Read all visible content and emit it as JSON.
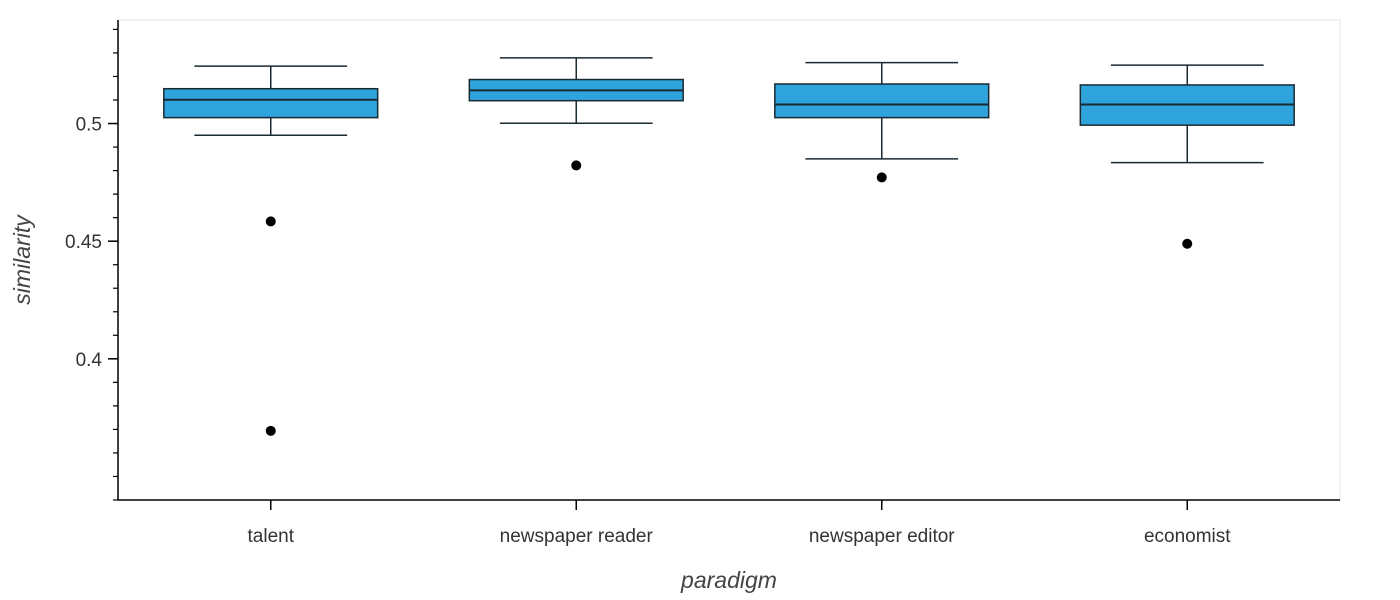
{
  "chart_data": {
    "type": "box",
    "xlabel": "paradigm",
    "ylabel": "similarity",
    "ylim": [
      0.34,
      0.544
    ],
    "yticks": [
      0.4,
      0.45,
      0.5
    ],
    "ytick_labels": [
      "0.4",
      "0.45",
      "0.5"
    ],
    "minor_tick_step": 0.01,
    "grid": false,
    "box_color": "#2ea3dc",
    "outline_color": "#1a2a33",
    "categories": [
      "talent",
      "newspaper reader",
      "newspaper editor",
      "economist"
    ],
    "boxes": [
      {
        "category": "talent",
        "whisker_low": 0.495,
        "q1": 0.5025,
        "median": 0.5101,
        "q3": 0.5148,
        "whisker_high": 0.5244,
        "outliers": [
          0.4584,
          0.3694
        ]
      },
      {
        "category": "newspaper reader",
        "whisker_low": 0.5001,
        "q1": 0.5097,
        "median": 0.5141,
        "q3": 0.5187,
        "whisker_high": 0.5279,
        "outliers": [
          0.4822
        ]
      },
      {
        "category": "newspaper editor",
        "whisker_low": 0.485,
        "q1": 0.5025,
        "median": 0.5081,
        "q3": 0.5168,
        "whisker_high": 0.5259,
        "outliers": [
          0.4771
        ]
      },
      {
        "category": "economist",
        "whisker_low": 0.4834,
        "q1": 0.4993,
        "median": 0.5081,
        "q3": 0.5164,
        "whisker_high": 0.5248,
        "outliers": [
          0.4489
        ]
      }
    ]
  }
}
